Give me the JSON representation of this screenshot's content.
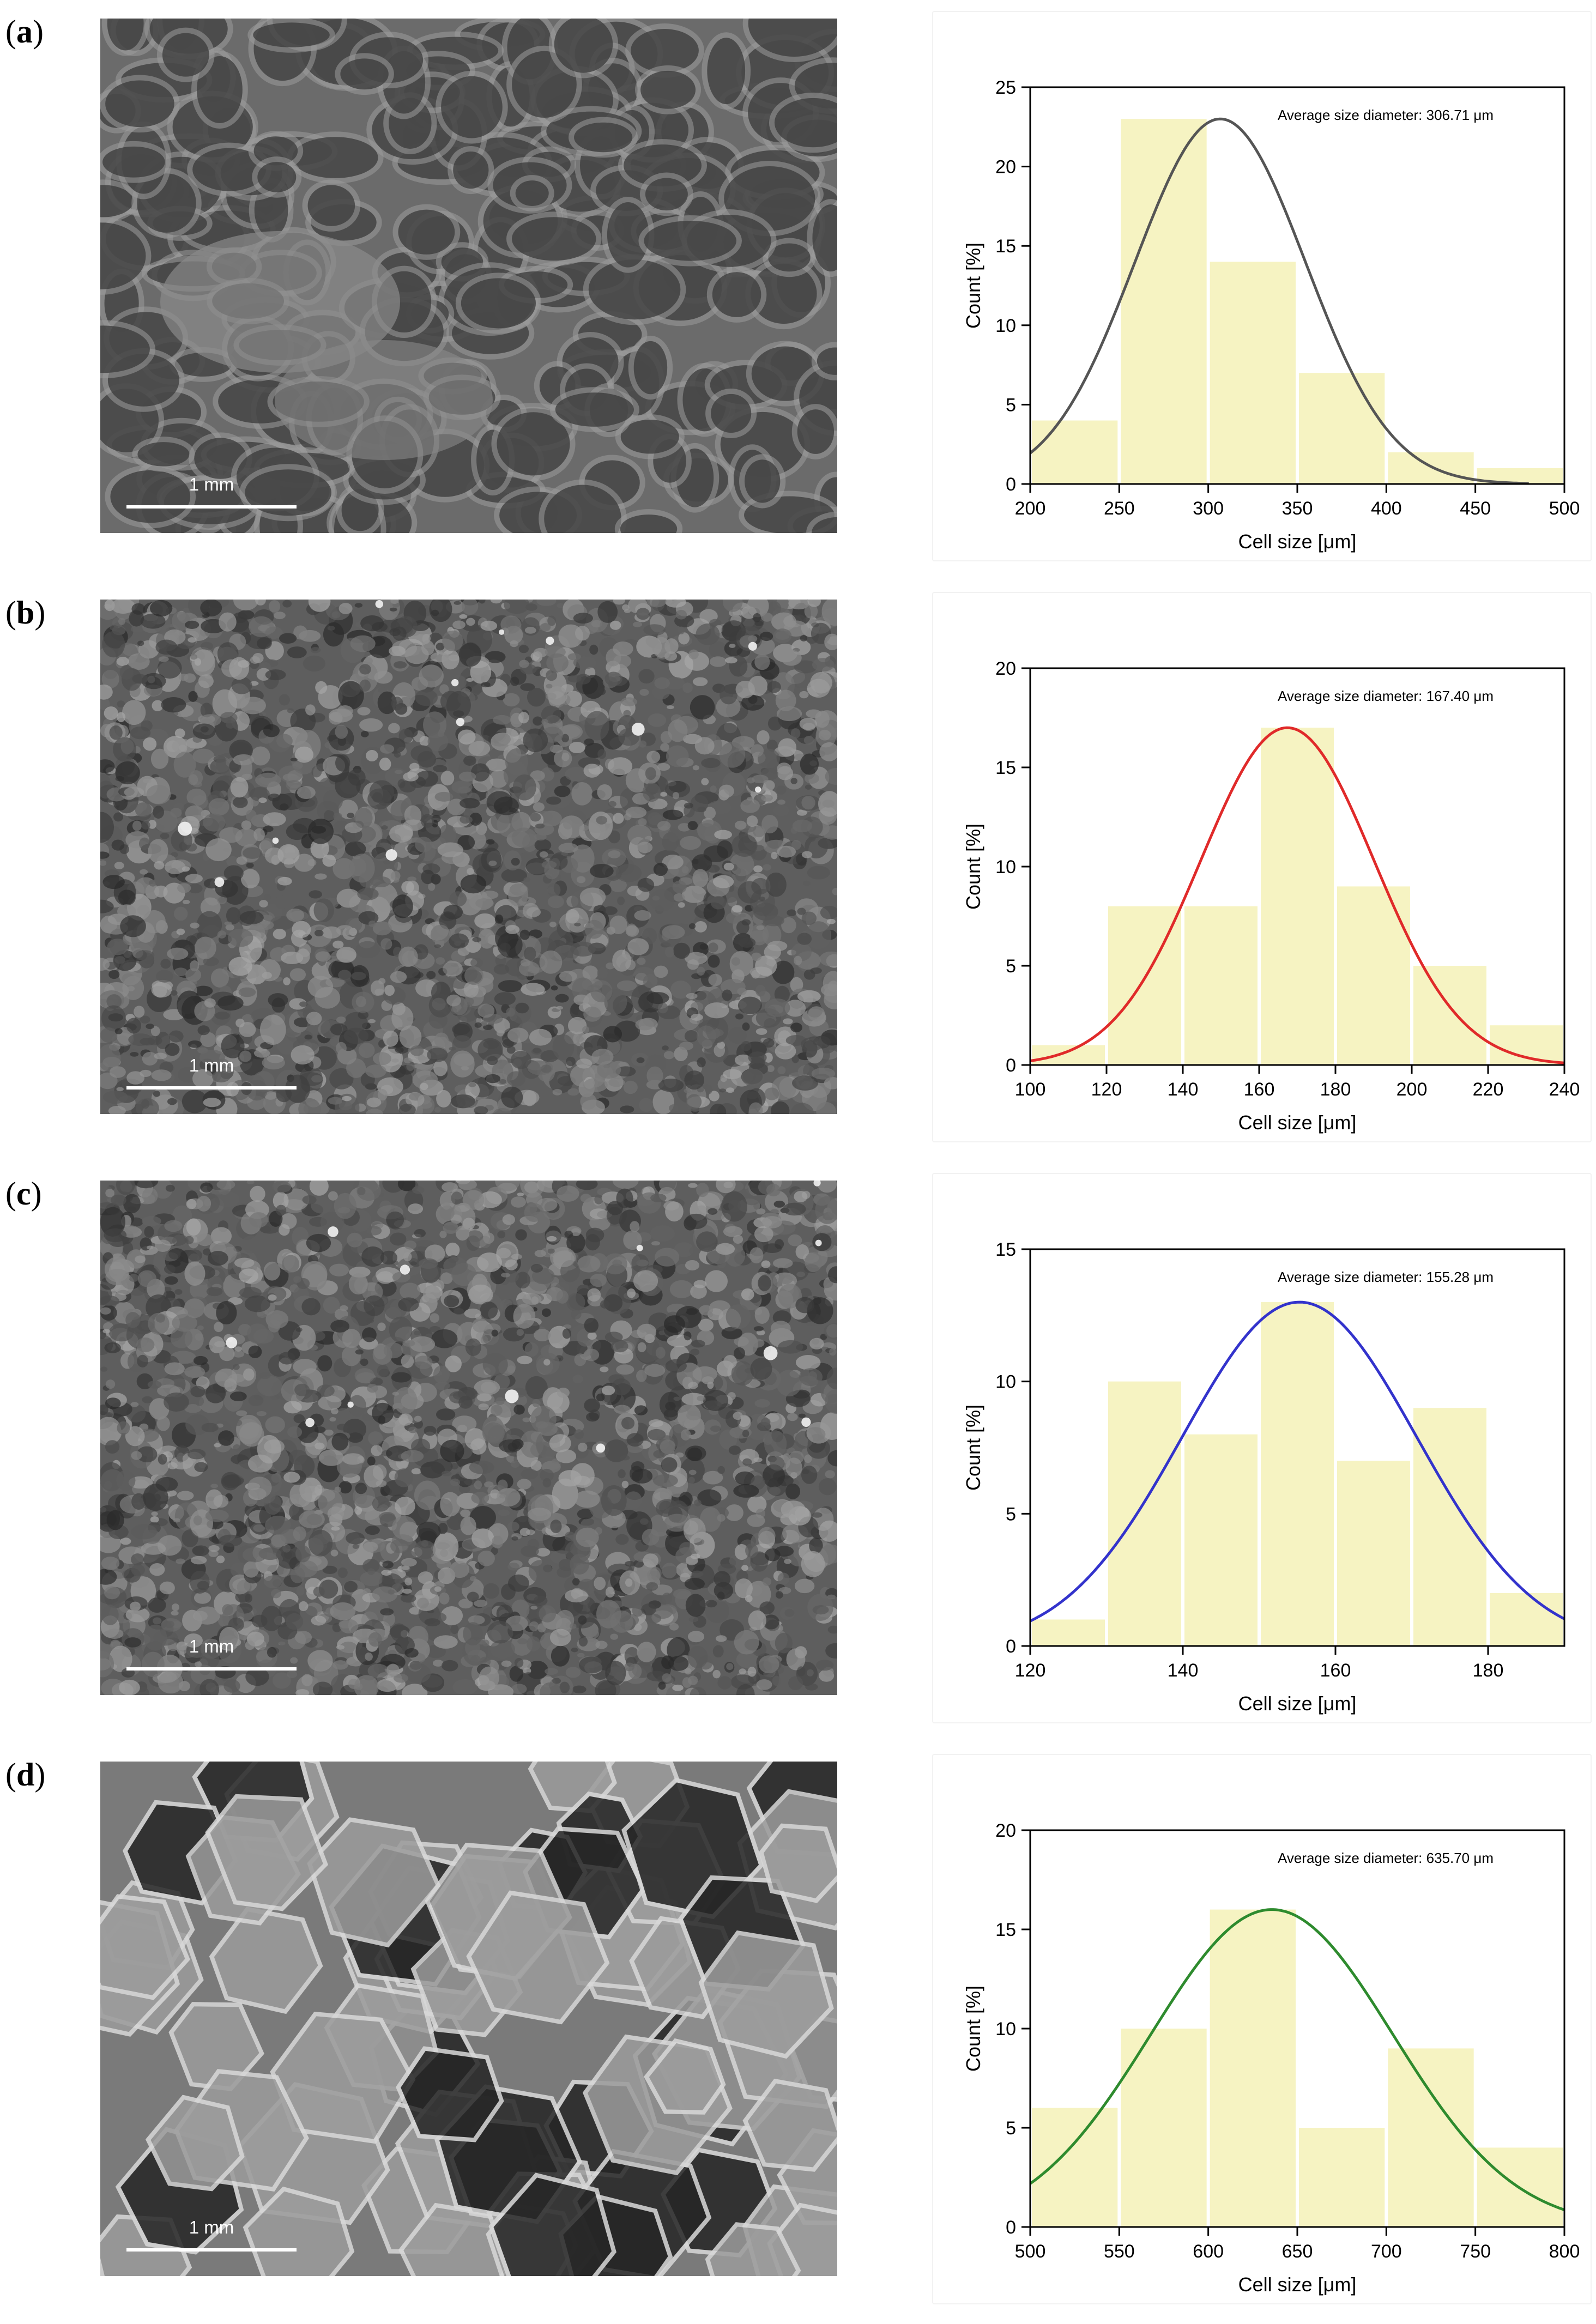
{
  "panels": [
    {
      "label": "a",
      "scale_bar": "1 mm",
      "sem_style": "large-cells",
      "chart_data": {
        "type": "bar",
        "title": "",
        "annotation": "Average size diameter: 306.71 μm",
        "xlabel": "Cell size [μm]",
        "ylabel": "Count [%]",
        "xlim": [
          200,
          500
        ],
        "ylim": [
          0,
          25
        ],
        "xticks": [
          200,
          250,
          300,
          350,
          400,
          450,
          500
        ],
        "yticks": [
          0,
          5,
          10,
          15,
          20,
          25
        ],
        "bins": [
          [
            200,
            250
          ],
          [
            250,
            300
          ],
          [
            300,
            350
          ],
          [
            350,
            400
          ],
          [
            400,
            450
          ],
          [
            450,
            500
          ]
        ],
        "values": [
          4,
          23,
          14,
          7,
          2,
          1
        ],
        "fit": {
          "type": "normal",
          "mean": 306.71,
          "sd": 48,
          "peak": 23,
          "x_end": 480,
          "color": "#555555"
        },
        "bar_color": "#f6f3c2",
        "grid": false
      }
    },
    {
      "label": "b",
      "scale_bar": "1 mm",
      "sem_style": "fine-rough",
      "chart_data": {
        "type": "bar",
        "title": "",
        "annotation": "Average size diameter: 167.40 μm",
        "xlabel": "Cell size [μm]",
        "ylabel": "Count [%]",
        "xlim": [
          100,
          240
        ],
        "ylim": [
          0,
          20
        ],
        "xticks": [
          100,
          120,
          140,
          160,
          180,
          200,
          220,
          240
        ],
        "yticks": [
          0,
          5,
          10,
          15,
          20
        ],
        "bins": [
          [
            100,
            120
          ],
          [
            120,
            140
          ],
          [
            140,
            160
          ],
          [
            160,
            180
          ],
          [
            180,
            200
          ],
          [
            200,
            220
          ],
          [
            220,
            240
          ]
        ],
        "values": [
          1,
          8,
          8,
          17,
          9,
          5,
          2
        ],
        "fit": {
          "type": "normal",
          "mean": 167.4,
          "sd": 22.7,
          "peak": 17,
          "x_end": 240,
          "color": "#e02a2a"
        },
        "bar_color": "#f6f3c2",
        "grid": false
      }
    },
    {
      "label": "c",
      "scale_bar": "1 mm",
      "sem_style": "fine-rough",
      "chart_data": {
        "type": "bar",
        "title": "",
        "annotation": "Average size diameter: 155.28 μm",
        "xlabel": "Cell size [μm]",
        "ylabel": "Count [%]",
        "xlim": [
          120,
          190
        ],
        "ylim": [
          0,
          15
        ],
        "xticks": [
          120,
          140,
          160,
          180
        ],
        "yticks": [
          0,
          5,
          10,
          15
        ],
        "bins": [
          [
            120,
            130
          ],
          [
            130,
            140
          ],
          [
            140,
            150
          ],
          [
            150,
            160
          ],
          [
            160,
            170
          ],
          [
            170,
            180
          ],
          [
            180,
            190
          ]
        ],
        "values": [
          1,
          10,
          8,
          13,
          7,
          9,
          2
        ],
        "fit": {
          "type": "normal",
          "mean": 155.28,
          "sd": 15.4,
          "peak": 13,
          "x_end": 190,
          "color": "#3333cc"
        },
        "bar_color": "#f6f3c2",
        "grid": false
      }
    },
    {
      "label": "d",
      "scale_bar": "1 mm",
      "sem_style": "large-open",
      "chart_data": {
        "type": "bar",
        "title": "",
        "annotation": "Average size diameter: 635.70 μm",
        "xlabel": "Cell size [μm]",
        "ylabel": "Count [%]",
        "xlim": [
          500,
          800
        ],
        "ylim": [
          0,
          20
        ],
        "xticks": [
          500,
          550,
          600,
          650,
          700,
          750,
          800
        ],
        "yticks": [
          0,
          5,
          10,
          15,
          20
        ],
        "bins": [
          [
            500,
            550
          ],
          [
            550,
            600
          ],
          [
            600,
            650
          ],
          [
            650,
            700
          ],
          [
            700,
            750
          ],
          [
            750,
            800
          ]
        ],
        "values": [
          6,
          10,
          16,
          5,
          9,
          4
        ],
        "fit": {
          "type": "normal",
          "mean": 635.7,
          "sd": 68,
          "peak": 16,
          "x_end": 800,
          "color": "#2e8b2e"
        },
        "bar_color": "#f6f3c2",
        "grid": false
      }
    }
  ]
}
